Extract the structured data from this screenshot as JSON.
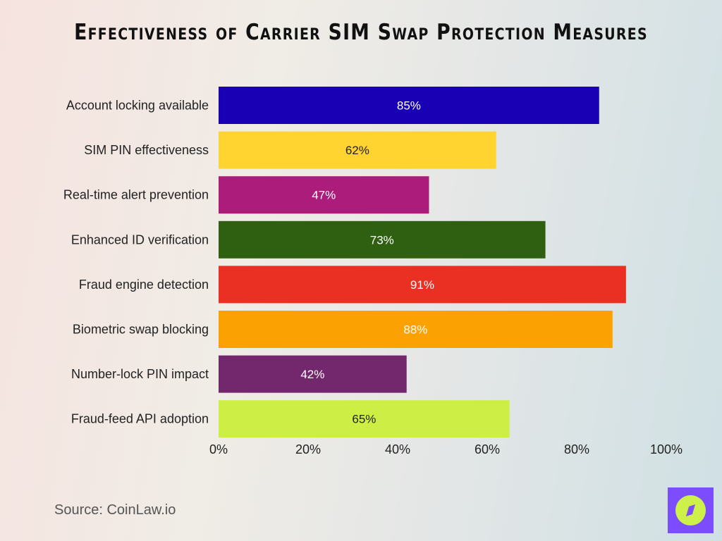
{
  "chart_data": {
    "type": "bar",
    "orientation": "horizontal",
    "title": "Effectiveness of Carrier SIM Swap Protection Measures",
    "categories": [
      "Account locking available",
      "SIM PIN effectiveness",
      "Real-time alert prevention",
      "Enhanced ID verification",
      "Fraud engine detection",
      "Biometric swap blocking",
      "Number-lock PIN impact",
      "Fraud-feed API adoption"
    ],
    "values": [
      85,
      62,
      47,
      73,
      91,
      88,
      42,
      65
    ],
    "data_labels": [
      "85%",
      "62%",
      "47%",
      "73%",
      "91%",
      "88%",
      "42%",
      "65%"
    ],
    "colors": [
      "#1a00b4",
      "#ffd330",
      "#ac1c7a",
      "#2f5f10",
      "#ea3023",
      "#fba202",
      "#73286e",
      "#cdee45"
    ],
    "label_colors": [
      "#ffffff",
      "#222222",
      "#ffffff",
      "#ffffff",
      "#ffffff",
      "#ffffff",
      "#ffffff",
      "#222222"
    ],
    "xlim": [
      0,
      100
    ],
    "xticks": [
      "0%",
      "20%",
      "40%",
      "60%",
      "80%",
      "100%"
    ],
    "grid": false,
    "xlabel": "",
    "ylabel": ""
  },
  "source": "Source: CoinLaw.io",
  "logo_icon": "compass-icon"
}
